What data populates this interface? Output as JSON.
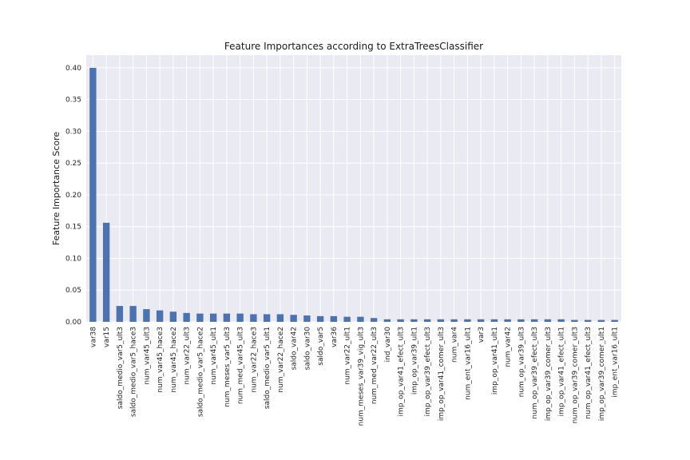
{
  "chart_data": {
    "type": "bar",
    "title": "Feature Importances according to ExtraTreesClassifier",
    "xlabel": "",
    "ylabel": "Feature Importance Score",
    "ylim": [
      0,
      0.42
    ],
    "yticks": [
      0.0,
      0.05,
      0.1,
      0.15,
      0.2,
      0.25,
      0.3,
      0.35,
      0.4
    ],
    "ytick_labels": [
      "0.00",
      "0.05",
      "0.10",
      "0.15",
      "0.20",
      "0.25",
      "0.30",
      "0.35",
      "0.40"
    ],
    "grid": true,
    "colors": {
      "bar": "#4c72b0",
      "plot_bg": "#eaeaf2",
      "grid": "#ffffff"
    },
    "categories": [
      "var38",
      "var15",
      "saldo_medio_var5_ult3",
      "saldo_medio_var5_hace3",
      "num_var45_ult3",
      "num_var45_hace3",
      "num_var45_hace2",
      "num_var22_ult3",
      "saldo_medio_var5_hace2",
      "num_var45_ult1",
      "num_meses_var5_ult3",
      "num_med_var45_ult3",
      "num_var22_hace3",
      "saldo_medio_var5_ult1",
      "num_var22_hace2",
      "saldo_var42",
      "saldo_var30",
      "saldo_var5",
      "var36",
      "num_var22_ult1",
      "num_meses_var39_vig_ult3",
      "num_med_var22_ult3",
      "ind_var30",
      "imp_op_var41_efect_ult3",
      "imp_op_var39_ult1",
      "imp_op_var39_efect_ult3",
      "imp_op_var41_comer_ult3",
      "num_var4",
      "num_ent_var16_ult1",
      "var3",
      "imp_op_var41_ult1",
      "num_var42",
      "num_op_var39_ult3",
      "num_op_var39_efect_ult3",
      "imp_op_var39_comer_ult3",
      "imp_op_var41_efect_ult1",
      "num_op_var39_comer_ult3",
      "num_op_var41_efect_ult3",
      "imp_op_var39_comer_ult1",
      "imp_ent_var16_ult1"
    ],
    "values": [
      0.4,
      0.156,
      0.025,
      0.025,
      0.02,
      0.018,
      0.016,
      0.014,
      0.013,
      0.013,
      0.013,
      0.013,
      0.012,
      0.012,
      0.012,
      0.011,
      0.01,
      0.009,
      0.009,
      0.008,
      0.008,
      0.006,
      0.004,
      0.004,
      0.004,
      0.004,
      0.004,
      0.004,
      0.004,
      0.004,
      0.004,
      0.004,
      0.004,
      0.004,
      0.004,
      0.004,
      0.003,
      0.003,
      0.003,
      0.003
    ]
  }
}
